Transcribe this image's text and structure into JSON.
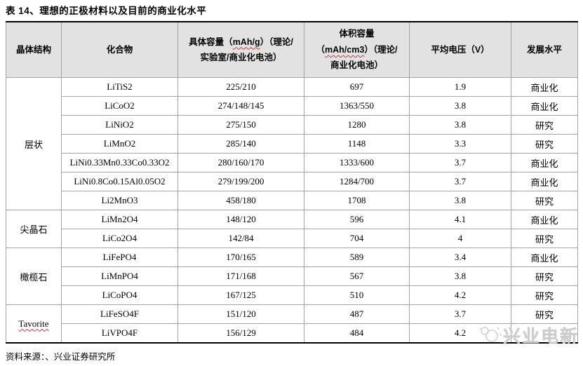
{
  "page": {
    "title": "表 14、理想的正极材料以及目前的商业化水平",
    "source_note": "资料来源：、兴业证券研究所",
    "watermark_text": "兴业电新"
  },
  "colors": {
    "header_bg": "#e2e2e2",
    "grid_line": "#a3a3a3",
    "heavy_rule": "#000000",
    "spellcheck_underline": "#e03030",
    "watermark_gray": "#cdcdcd"
  },
  "table": {
    "columns": [
      {
        "name": "crystal-structure",
        "label_segments": [
          {
            "text": "晶体结构"
          }
        ]
      },
      {
        "name": "compound",
        "label_segments": [
          {
            "text": "化合物"
          }
        ]
      },
      {
        "name": "specific-capacity",
        "label_segments": [
          {
            "text": "具体容量（"
          },
          {
            "text": "mAh/g",
            "wavy": true
          },
          {
            "text": "）（理论/",
            "br": true
          },
          {
            "text": "实验室/商业化电池）"
          }
        ]
      },
      {
        "name": "volumetric-capacity",
        "label_segments": [
          {
            "text": "体积容量",
            "br": true
          },
          {
            "text": "（"
          },
          {
            "text": "mAh/cm3",
            "wavy": true
          },
          {
            "text": "）（理论/",
            "br": true
          },
          {
            "text": "商业化电池）"
          }
        ]
      },
      {
        "name": "average-voltage",
        "label_segments": [
          {
            "text": "平均电压（V）"
          }
        ]
      },
      {
        "name": "development-level",
        "label_segments": [
          {
            "text": "发展水平"
          }
        ]
      }
    ],
    "groups": [
      {
        "structure": "层状",
        "wavy": false,
        "rows": [
          [
            "LiTiS2",
            "225/210",
            "697",
            "1.9",
            "商业化"
          ],
          [
            "LiCoO2",
            "274/148/145",
            "1363/550",
            "3.8",
            "商业化"
          ],
          [
            "LiNiO2",
            "275/150",
            "1280",
            "3.8",
            "研究"
          ],
          [
            "LiMnO2",
            "285/140",
            "1148",
            "3.3",
            "研究"
          ],
          [
            "LiNi0.33Mn0.33Co0.33O2",
            "280/160/170",
            "1333/600",
            "3.7",
            "商业化"
          ],
          [
            "LiNi0.8Co0.15Al0.05O2",
            "279/199/200",
            "1284/700",
            "3.7",
            "商业化"
          ],
          [
            "Li2MnO3",
            "458/180",
            "1708",
            "3.8",
            "研究"
          ]
        ]
      },
      {
        "structure": "尖晶石",
        "wavy": false,
        "rows": [
          [
            "LiMn2O4",
            "148/120",
            "596",
            "4.1",
            "商业化"
          ],
          [
            "LiCo2O4",
            "142/84",
            "704",
            "4",
            "研究"
          ]
        ]
      },
      {
        "structure": "橄榄石",
        "wavy": false,
        "rows": [
          [
            "LiFePO4",
            "170/165",
            "589",
            "3.4",
            "商业化"
          ],
          [
            "LiMnPO4",
            "171/168",
            "567",
            "3.8",
            "研究"
          ],
          [
            "LiCoPO4",
            "167/125",
            "510",
            "4.2",
            "研究"
          ]
        ]
      },
      {
        "structure": "Tavorite",
        "wavy": true,
        "rows": [
          [
            "LiFeSO4F",
            "151/120",
            "487",
            "3.7",
            "研究"
          ],
          [
            "LiVPO4F",
            "156/129",
            "484",
            "4.2",
            ""
          ]
        ]
      }
    ]
  }
}
